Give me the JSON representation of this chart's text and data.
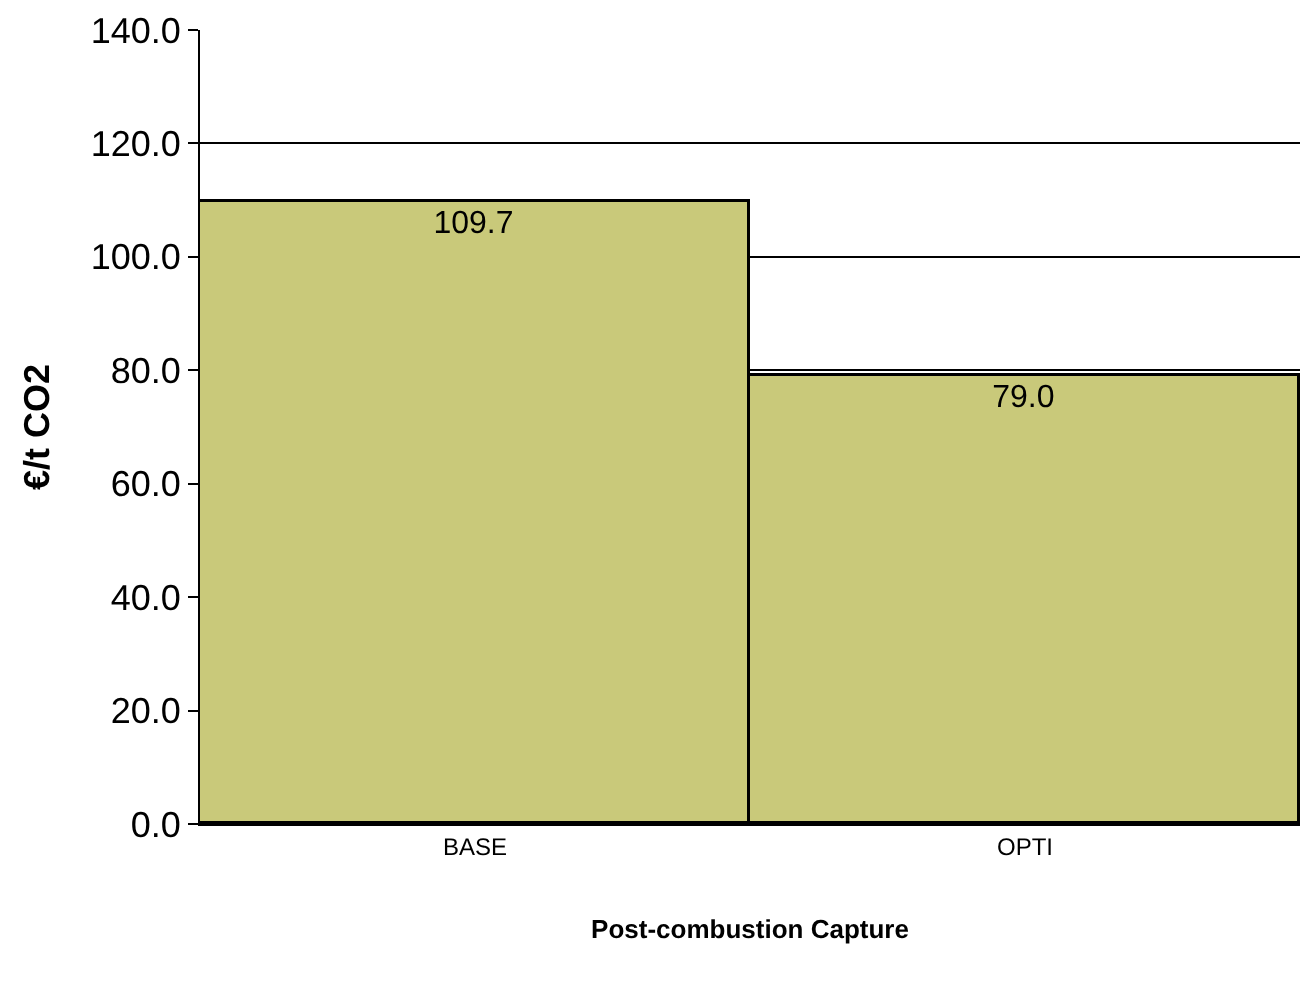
{
  "chart_data": {
    "type": "bar",
    "categories": [
      "BASE",
      "OPTI"
    ],
    "values": [
      109.7,
      79.0
    ],
    "value_labels": [
      "109.7",
      "79.0"
    ],
    "color": "#c9c97a",
    "ylabel": "€/t CO2",
    "xlabel": "Post-combustion Capture",
    "ylim": [
      0,
      140
    ],
    "yticks": [
      {
        "value": 0,
        "label": "0.0"
      },
      {
        "value": 20,
        "label": "20.0"
      },
      {
        "value": 40,
        "label": "40.0"
      },
      {
        "value": 60,
        "label": "60.0"
      },
      {
        "value": 80,
        "label": "80.0"
      },
      {
        "value": 100,
        "label": "100.0"
      },
      {
        "value": 120,
        "label": "120.0"
      },
      {
        "value": 140,
        "label": "140.0"
      }
    ],
    "grid": "y"
  }
}
